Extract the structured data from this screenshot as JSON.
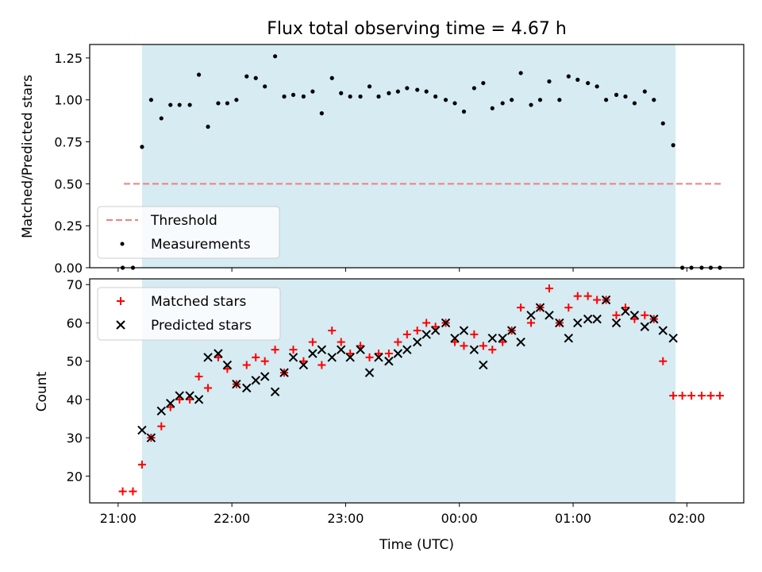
{
  "figure": {
    "title": "Flux total observing time = 4.67 h",
    "xlabel": "Time (UTC)"
  },
  "colors": {
    "shade": "#add8e6",
    "threshold": "#f08080",
    "measurement": "#000000",
    "matched": "#ff0000",
    "predicted": "#000000"
  },
  "chart_data": [
    {
      "type": "scatter",
      "ylabel": "Matched/Predicted stars",
      "xlim": [
        20.75,
        26.5
      ],
      "ylim": [
        0,
        1.33
      ],
      "x_ticks": [
        21,
        22,
        23,
        24,
        25,
        26
      ],
      "x_tick_labels": [
        "21:00",
        "22:00",
        "23:00",
        "00:00",
        "01:00",
        "02:00"
      ],
      "y_ticks": [
        0,
        0.25,
        0.5,
        0.75,
        1.0,
        1.25
      ],
      "y_tick_labels": [
        "0.00",
        "0.25",
        "0.50",
        "0.75",
        "1.00",
        "1.25"
      ],
      "shaded_region": [
        21.21,
        25.9
      ],
      "legend": {
        "position": "lower-left",
        "entries": [
          "Threshold",
          "Measurements"
        ]
      },
      "threshold": {
        "name": "Threshold",
        "y": 0.5,
        "x": [
          21.05,
          26.3
        ]
      },
      "series": [
        {
          "name": "Measurements",
          "marker": "dot",
          "x": [
            21.04,
            21.13,
            21.21,
            21.29,
            21.38,
            21.46,
            21.54,
            21.63,
            21.71,
            21.79,
            21.88,
            21.96,
            22.04,
            22.13,
            22.21,
            22.29,
            22.38,
            22.46,
            22.54,
            22.63,
            22.71,
            22.79,
            22.88,
            22.96,
            23.04,
            23.13,
            23.21,
            23.29,
            23.38,
            23.46,
            23.54,
            23.63,
            23.71,
            23.79,
            23.88,
            23.96,
            24.04,
            24.13,
            24.21,
            24.29,
            24.38,
            24.46,
            24.54,
            24.63,
            24.71,
            24.79,
            24.88,
            24.96,
            25.04,
            25.13,
            25.21,
            25.29,
            25.38,
            25.46,
            25.54,
            25.63,
            25.71,
            25.79,
            25.88,
            25.96,
            26.04,
            26.13,
            26.21,
            26.29
          ],
          "y": [
            0.0,
            0.0,
            0.72,
            1.0,
            0.89,
            0.97,
            0.97,
            0.97,
            1.15,
            0.84,
            0.98,
            0.98,
            1.0,
            1.14,
            1.13,
            1.08,
            1.26,
            1.02,
            1.03,
            1.02,
            1.05,
            0.92,
            1.13,
            1.04,
            1.02,
            1.02,
            1.08,
            1.02,
            1.04,
            1.05,
            1.07,
            1.06,
            1.05,
            1.02,
            1.0,
            0.98,
            0.93,
            1.07,
            1.1,
            0.95,
            0.98,
            1.0,
            1.16,
            0.97,
            1.0,
            1.11,
            1.0,
            1.14,
            1.12,
            1.1,
            1.08,
            1.0,
            1.03,
            1.02,
            0.98,
            1.05,
            1.0,
            0.86,
            0.73,
            0.0,
            0.0,
            0.0,
            0.0,
            0.0
          ]
        }
      ]
    },
    {
      "type": "scatter",
      "ylabel": "Count",
      "xlim": [
        20.75,
        26.5
      ],
      "ylim": [
        13,
        71.5
      ],
      "x_ticks": [
        21,
        22,
        23,
        24,
        25,
        26
      ],
      "x_tick_labels": [
        "21:00",
        "22:00",
        "23:00",
        "00:00",
        "01:00",
        "02:00"
      ],
      "y_ticks": [
        20,
        30,
        40,
        50,
        60,
        70
      ],
      "y_tick_labels": [
        "20",
        "30",
        "40",
        "50",
        "60",
        "70"
      ],
      "shaded_region": [
        21.21,
        25.9
      ],
      "legend": {
        "position": "upper-left",
        "entries": [
          "Matched stars",
          "Predicted stars"
        ]
      },
      "series": [
        {
          "name": "Matched stars",
          "marker": "plus",
          "x": [
            21.04,
            21.13,
            21.21,
            21.29,
            21.38,
            21.46,
            21.54,
            21.63,
            21.71,
            21.79,
            21.88,
            21.96,
            22.04,
            22.13,
            22.21,
            22.29,
            22.38,
            22.46,
            22.54,
            22.63,
            22.71,
            22.79,
            22.88,
            22.96,
            23.04,
            23.13,
            23.21,
            23.29,
            23.38,
            23.46,
            23.54,
            23.63,
            23.71,
            23.79,
            23.88,
            23.96,
            24.04,
            24.13,
            24.21,
            24.29,
            24.38,
            24.46,
            24.54,
            24.63,
            24.71,
            24.79,
            24.88,
            24.96,
            25.04,
            25.13,
            25.21,
            25.29,
            25.38,
            25.46,
            25.54,
            25.63,
            25.71,
            25.79,
            25.88,
            25.96,
            26.04,
            26.13,
            26.21,
            26.29
          ],
          "y": [
            16,
            16,
            23,
            30,
            33,
            38,
            40,
            40,
            46,
            43,
            51,
            48,
            44,
            49,
            51,
            50,
            53,
            47,
            53,
            50,
            55,
            49,
            58,
            55,
            52,
            54,
            51,
            52,
            52,
            55,
            57,
            58,
            60,
            59,
            60,
            55,
            54,
            57,
            54,
            53,
            55,
            58,
            64,
            60,
            64,
            69,
            60,
            64,
            67,
            67,
            66,
            66,
            62,
            64,
            61,
            62,
            61,
            50,
            41,
            41,
            41,
            41,
            41,
            41
          ]
        },
        {
          "name": "Predicted stars",
          "marker": "x",
          "x": [
            21.21,
            21.29,
            21.38,
            21.46,
            21.54,
            21.63,
            21.71,
            21.79,
            21.88,
            21.96,
            22.04,
            22.13,
            22.21,
            22.29,
            22.38,
            22.46,
            22.54,
            22.63,
            22.71,
            22.79,
            22.88,
            22.96,
            23.04,
            23.13,
            23.21,
            23.29,
            23.38,
            23.46,
            23.54,
            23.63,
            23.71,
            23.79,
            23.88,
            23.96,
            24.04,
            24.13,
            24.21,
            24.29,
            24.38,
            24.46,
            24.54,
            24.63,
            24.71,
            24.79,
            24.88,
            24.96,
            25.04,
            25.13,
            25.21,
            25.29,
            25.38,
            25.46,
            25.54,
            25.63,
            25.71,
            25.79,
            25.88
          ],
          "y": [
            32,
            30,
            37,
            39,
            41,
            41,
            40,
            51,
            52,
            49,
            44,
            43,
            45,
            46,
            42,
            47,
            51,
            49,
            52,
            53,
            51,
            53,
            51,
            53,
            47,
            51,
            50,
            52,
            53,
            55,
            57,
            58,
            60,
            56,
            58,
            53,
            49,
            56,
            56,
            58,
            55,
            62,
            64,
            62,
            60,
            56,
            60,
            61,
            61,
            66,
            60,
            63,
            62,
            59,
            61,
            58,
            56
          ]
        }
      ]
    }
  ]
}
